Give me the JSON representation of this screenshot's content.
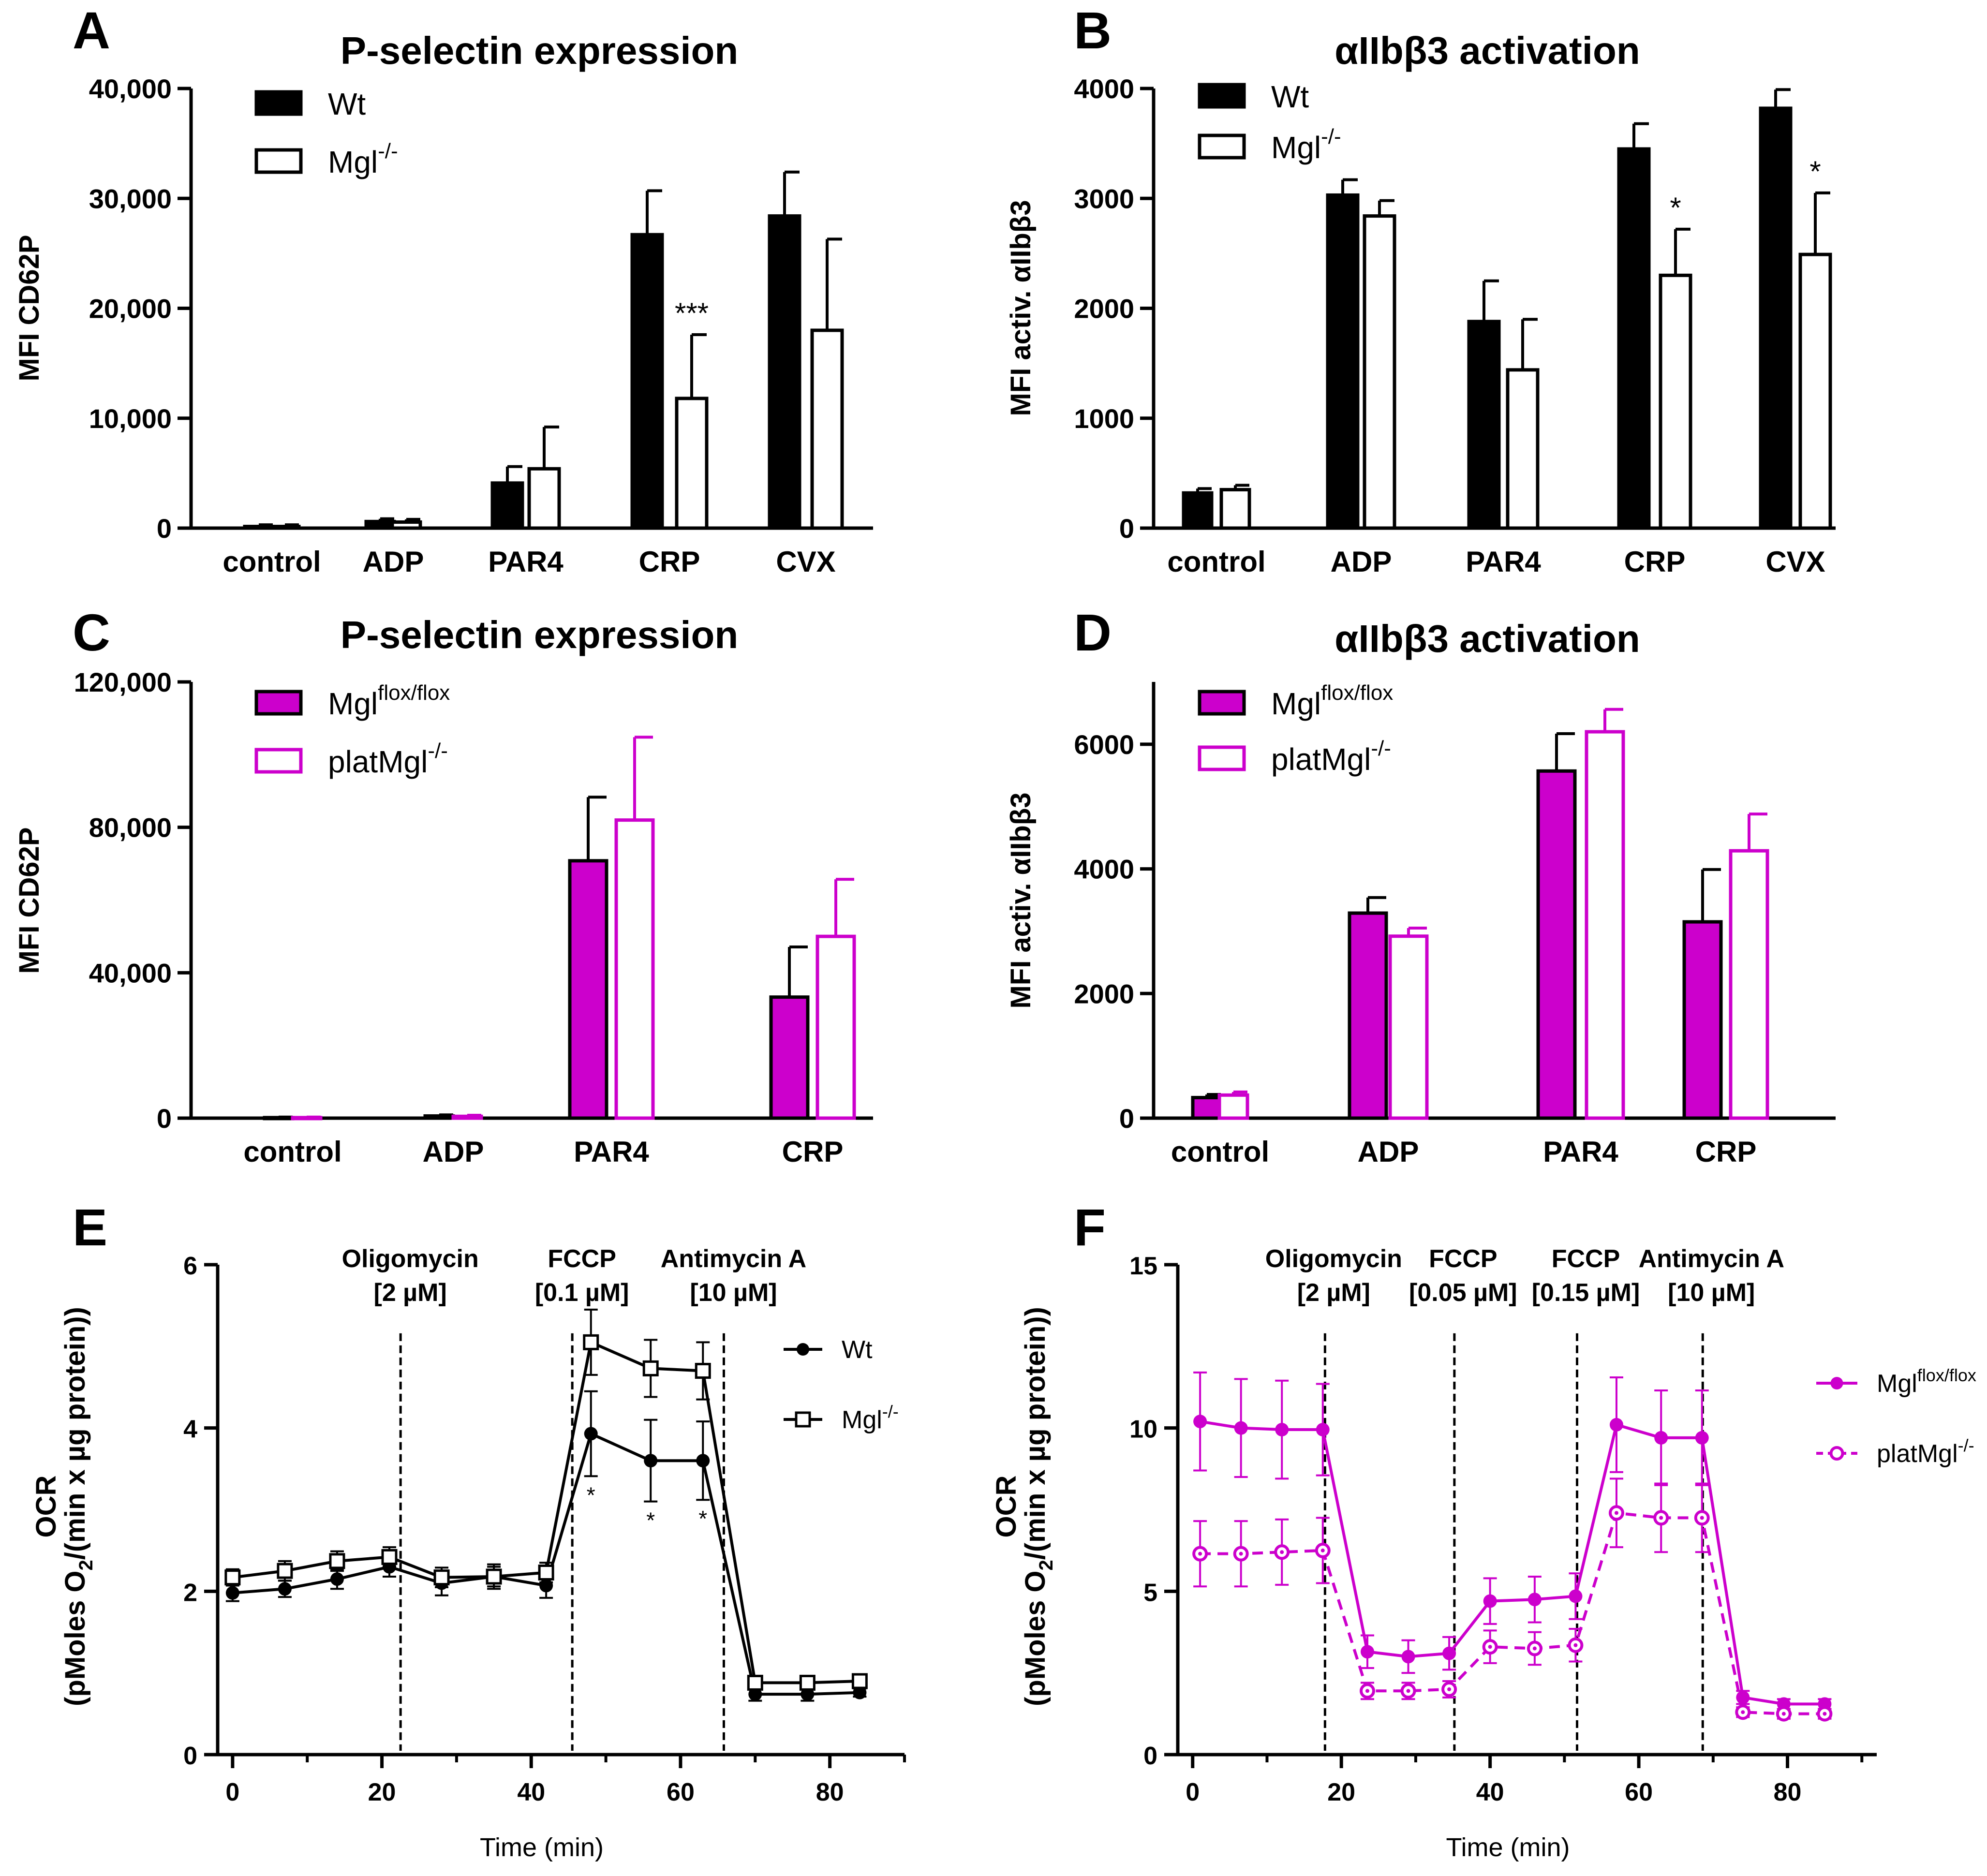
{
  "colors": {
    "black": "#000000",
    "magenta": "#cc00cc",
    "white": "#ffffff"
  },
  "chart_data": [
    {
      "panel": "A",
      "type": "bar",
      "title": "P-selectin expression",
      "ylabel": "MFI CD62P",
      "categories": [
        "control",
        "ADP",
        "PAR4",
        "CRP",
        "CVX"
      ],
      "ylim": [
        0,
        40000
      ],
      "yticks": [
        0,
        10000,
        20000,
        30000,
        40000
      ],
      "ytick_labels": [
        "0",
        "10,000",
        "20,000",
        "30,000",
        "40,000"
      ],
      "series": [
        {
          "name": "Wt",
          "legend_base": "Wt",
          "legend_sup": "",
          "fill": "#000000",
          "stroke": "#000000",
          "values": [
            150,
            600,
            4100,
            26700,
            28400
          ],
          "errors": [
            150,
            250,
            1500,
            4000,
            4000
          ]
        },
        {
          "name": "Mgl-/-",
          "legend_base": "Mgl",
          "legend_sup": "-/-",
          "fill": "#ffffff",
          "stroke": "#000000",
          "values": [
            150,
            550,
            5400,
            11800,
            18000
          ],
          "errors": [
            150,
            250,
            3800,
            5800,
            8300
          ]
        }
      ],
      "annotations": [
        {
          "category": "CRP",
          "series": 1,
          "text": "***"
        }
      ]
    },
    {
      "panel": "B",
      "type": "bar",
      "title": "αIIbβ3 activation",
      "ylabel": "MFI activ. αIIbβ3",
      "categories": [
        "control",
        "ADP",
        "PAR4",
        "CRP",
        "CVX"
      ],
      "ylim": [
        0,
        4000
      ],
      "yticks": [
        0,
        1000,
        2000,
        3000,
        4000
      ],
      "ytick_labels": [
        "0",
        "1000",
        "2000",
        "3000",
        "4000"
      ],
      "series": [
        {
          "name": "Wt",
          "legend_base": "Wt",
          "legend_sup": "",
          "fill": "#000000",
          "stroke": "#000000",
          "values": [
            320,
            3030,
            1880,
            3450,
            3820
          ],
          "errors": [
            40,
            140,
            370,
            230,
            170
          ]
        },
        {
          "name": "Mgl-/-",
          "legend_base": "Mgl",
          "legend_sup": "-/-",
          "fill": "#ffffff",
          "stroke": "#000000",
          "values": [
            350,
            2840,
            1440,
            2300,
            2490
          ],
          "errors": [
            40,
            140,
            460,
            420,
            560
          ]
        }
      ],
      "annotations": [
        {
          "category": "CRP",
          "series": 1,
          "text": "*"
        },
        {
          "category": "CVX",
          "series": 1,
          "text": "*"
        }
      ]
    },
    {
      "panel": "C",
      "type": "bar",
      "title": "P-selectin expression",
      "ylabel": "MFI CD62P",
      "categories": [
        "control",
        "ADP",
        "PAR4",
        "CRP"
      ],
      "ylim": [
        0,
        120000
      ],
      "yticks": [
        0,
        40000,
        80000,
        120000
      ],
      "ytick_labels": [
        "0",
        "40,000",
        "80,000",
        "120,000"
      ],
      "series": [
        {
          "name": "Mglflox/flox",
          "legend_base": "Mgl",
          "legend_sup": "flox/flox",
          "fill": "#cc00cc",
          "stroke": "#000000",
          "values": [
            150,
            600,
            70800,
            33300
          ],
          "errors": [
            150,
            300,
            17500,
            13800
          ]
        },
        {
          "name": "platMgl-/-",
          "legend_base": "platMgl",
          "legend_sup": "-/-",
          "fill": "#ffffff",
          "stroke": "#cc00cc",
          "values": [
            150,
            500,
            82000,
            50000
          ],
          "errors": [
            150,
            300,
            22800,
            15700
          ]
        }
      ],
      "annotations": []
    },
    {
      "panel": "D",
      "type": "bar",
      "title": "αIIbβ3 activation",
      "ylabel": "MFI activ. αIIbβ3",
      "categories": [
        "control",
        "ADP",
        "PAR4",
        "CRP"
      ],
      "ylim": [
        0,
        7000
      ],
      "yticks": [
        0,
        2000,
        4000,
        6000
      ],
      "ytick_labels": [
        "0",
        "2000",
        "4000",
        "6000"
      ],
      "series": [
        {
          "name": "Mglflox/flox",
          "legend_base": "Mgl",
          "legend_sup": "flox/flox",
          "fill": "#cc00cc",
          "stroke": "#000000",
          "values": [
            330,
            3290,
            5570,
            3150
          ],
          "errors": [
            50,
            250,
            600,
            840
          ]
        },
        {
          "name": "platMgl-/-",
          "legend_base": "platMgl",
          "legend_sup": "-/-",
          "fill": "#ffffff",
          "stroke": "#cc00cc",
          "values": [
            370,
            2920,
            6200,
            4290
          ],
          "errors": [
            50,
            130,
            360,
            590
          ]
        }
      ],
      "annotations": []
    },
    {
      "panel": "E",
      "type": "line",
      "xlabel": "Time (min)",
      "ylabel_line1": "OCR",
      "ylabel_line2": "(pMoles O",
      "ylabel_sub": "2",
      "ylabel_line2_end": "/(min x µg protein))",
      "xlim": [
        -2,
        90
      ],
      "ylim": [
        0,
        6
      ],
      "xticks": [
        0,
        20,
        40,
        60,
        80
      ],
      "xtick_labels": [
        "0",
        "20",
        "40",
        "60",
        "80"
      ],
      "yticks": [
        0,
        2,
        4,
        6
      ],
      "ytick_labels": [
        "0",
        "2",
        "4",
        "6"
      ],
      "injections": [
        {
          "x": 22.5,
          "line1": "Oligomycin",
          "line2": "[2 µM]"
        },
        {
          "x": 45.5,
          "line1": "FCCP",
          "line2": "[0.1 µM]"
        },
        {
          "x": 65.8,
          "line1": "Antimycin A",
          "line2": "[10 µM]"
        }
      ],
      "series": [
        {
          "name": "Wt",
          "legend_base": "Wt",
          "legend_sup": "",
          "marker": "circle",
          "color": "#000000",
          "dash": false,
          "x": [
            0,
            7,
            14,
            21,
            28,
            35,
            42,
            48,
            56,
            63,
            70,
            77,
            84
          ],
          "y": [
            1.98,
            2.03,
            2.15,
            2.3,
            2.1,
            2.18,
            2.07,
            3.93,
            3.6,
            3.6,
            0.74,
            0.74,
            0.76
          ],
          "err": [
            0.1,
            0.1,
            0.12,
            0.12,
            0.15,
            0.15,
            0.15,
            0.52,
            0.5,
            0.48,
            0.08,
            0.08,
            0.05
          ]
        },
        {
          "name": "Mgl-/-",
          "legend_base": "Mgl",
          "legend_sup": "-/-",
          "marker": "square",
          "color": "#000000",
          "dash": false,
          "x": [
            0,
            7,
            14,
            21,
            28,
            35,
            42,
            48,
            56,
            63,
            70,
            77,
            84
          ],
          "y": [
            2.17,
            2.25,
            2.37,
            2.42,
            2.17,
            2.18,
            2.23,
            5.05,
            4.73,
            4.7,
            0.88,
            0.88,
            0.9
          ],
          "err": [
            0.1,
            0.12,
            0.12,
            0.12,
            0.12,
            0.12,
            0.12,
            0.4,
            0.35,
            0.35,
            0.08,
            0.06,
            0.06
          ]
        }
      ],
      "annotations": [
        {
          "x": 48,
          "text": "*"
        },
        {
          "x": 56,
          "text": "*"
        },
        {
          "x": 63,
          "text": "*"
        }
      ]
    },
    {
      "panel": "F",
      "type": "line",
      "xlabel": "Time (min)",
      "ylabel_line1": "OCR",
      "ylabel_line2": "(pMoles O",
      "ylabel_sub": "2",
      "ylabel_line2_end": "/(min x µg protein))",
      "xlim": [
        -2,
        92
      ],
      "ylim": [
        0,
        15
      ],
      "xticks": [
        0,
        20,
        40,
        60,
        80
      ],
      "xtick_labels": [
        "0",
        "20",
        "40",
        "60",
        "80"
      ],
      "yticks": [
        0,
        5,
        10,
        15
      ],
      "ytick_labels": [
        "0",
        "5",
        "10",
        "15"
      ],
      "injections": [
        {
          "x": 17.8,
          "line1": "Oligomycin",
          "line2": "[2 µM]"
        },
        {
          "x": 35.2,
          "line1": "FCCP",
          "line2": "[0.05 µM]"
        },
        {
          "x": 51.7,
          "line1": "FCCP",
          "line2": "[0.15 µM]"
        },
        {
          "x": 68.6,
          "line1": "Antimycin A",
          "line2": "[10 µM]"
        }
      ],
      "series": [
        {
          "name": "Mglflox/flox",
          "legend_base": "Mgl",
          "legend_sup": "flox/flox",
          "marker": "circle",
          "color": "#cc00cc",
          "dash": false,
          "x": [
            1,
            6.5,
            12,
            17.5,
            23.5,
            29,
            34.5,
            40,
            46,
            51.5,
            57,
            63,
            68.5,
            74,
            79.5,
            85
          ],
          "y": [
            10.2,
            10.0,
            9.95,
            9.95,
            3.15,
            3.0,
            3.1,
            4.7,
            4.75,
            4.85,
            10.1,
            9.7,
            9.7,
            1.75,
            1.55,
            1.55
          ],
          "err": [
            1.5,
            1.5,
            1.5,
            1.4,
            0.5,
            0.5,
            0.5,
            0.7,
            0.7,
            0.7,
            1.45,
            1.45,
            1.45,
            0.2,
            0.15,
            0.15
          ]
        },
        {
          "name": "platMgl-/-",
          "legend_base": "platMgl",
          "legend_sup": "-/-",
          "marker": "circle-open",
          "color": "#cc00cc",
          "dash": true,
          "x": [
            1,
            6.5,
            12,
            17.5,
            23.5,
            29,
            34.5,
            40,
            46,
            51.5,
            57,
            63,
            68.5,
            74,
            79.5,
            85
          ],
          "y": [
            6.15,
            6.15,
            6.2,
            6.25,
            1.95,
            1.95,
            2.0,
            3.3,
            3.25,
            3.35,
            7.4,
            7.25,
            7.25,
            1.3,
            1.25,
            1.25
          ],
          "err": [
            1.0,
            1.0,
            1.0,
            1.0,
            0.25,
            0.25,
            0.25,
            0.5,
            0.5,
            0.5,
            1.05,
            1.05,
            1.05,
            0.15,
            0.15,
            0.15
          ]
        }
      ],
      "annotations": []
    }
  ]
}
